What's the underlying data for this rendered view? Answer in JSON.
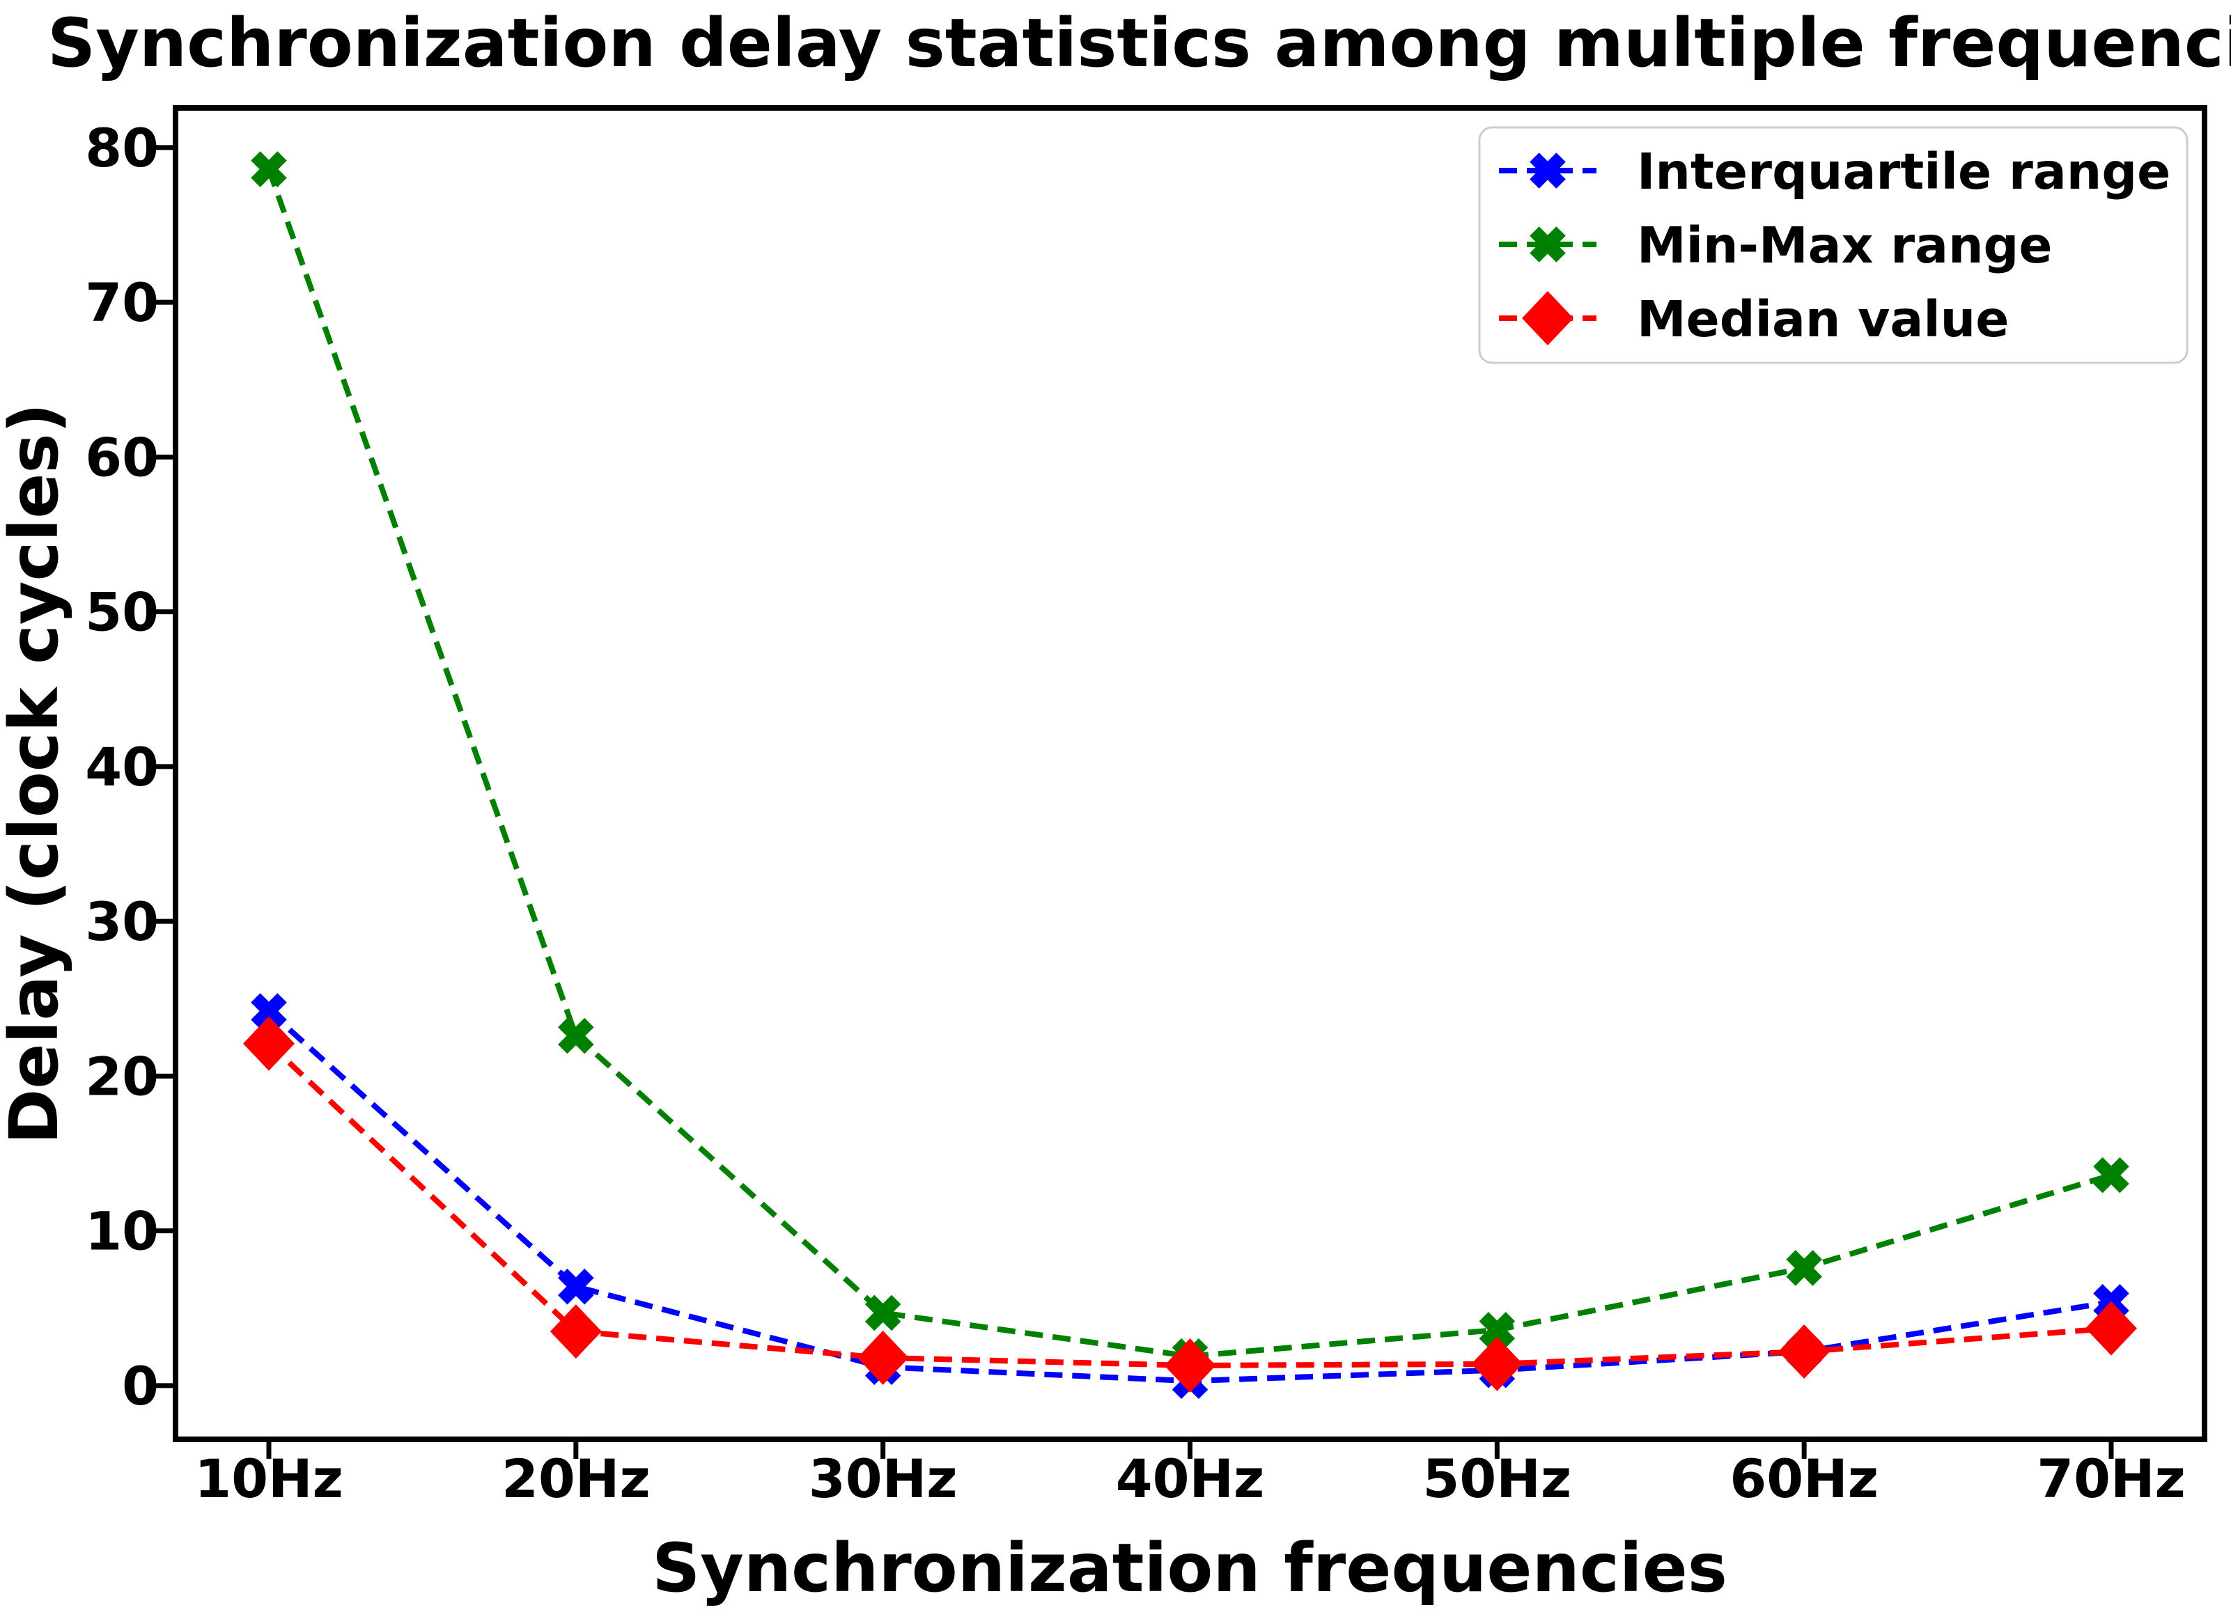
{
  "chart_data": {
    "type": "line",
    "title": "Synchronization delay statistics among multiple frequencies",
    "xlabel": "Synchronization frequencies",
    "ylabel": "Delay (clock cycles)",
    "categories": [
      "10Hz",
      "20Hz",
      "30Hz",
      "40Hz",
      "50Hz",
      "60Hz",
      "70Hz"
    ],
    "series": [
      {
        "name": "Interquartile range",
        "color": "#0000ff",
        "marker": "X",
        "linestyle": "dashed",
        "values": [
          24.2,
          6.4,
          1.2,
          0.3,
          1.0,
          2.2,
          5.4
        ]
      },
      {
        "name": "Min-Max range",
        "color": "#008000",
        "marker": "X",
        "linestyle": "dashed",
        "values": [
          78.6,
          22.6,
          4.7,
          1.9,
          3.6,
          7.6,
          13.6
        ]
      },
      {
        "name": "Median value",
        "color": "#ff0000",
        "marker": "D",
        "linestyle": "dashed",
        "values": [
          22.1,
          3.5,
          1.8,
          1.3,
          1.4,
          2.2,
          3.7
        ]
      }
    ],
    "yticks": [
      0,
      10,
      20,
      30,
      40,
      50,
      60,
      70,
      80
    ],
    "ylim": [
      -3.47,
      82.56
    ],
    "grid": false,
    "legend_position": "upper right",
    "frame_color": "#000000",
    "legend_border_color": "#cccccc"
  }
}
